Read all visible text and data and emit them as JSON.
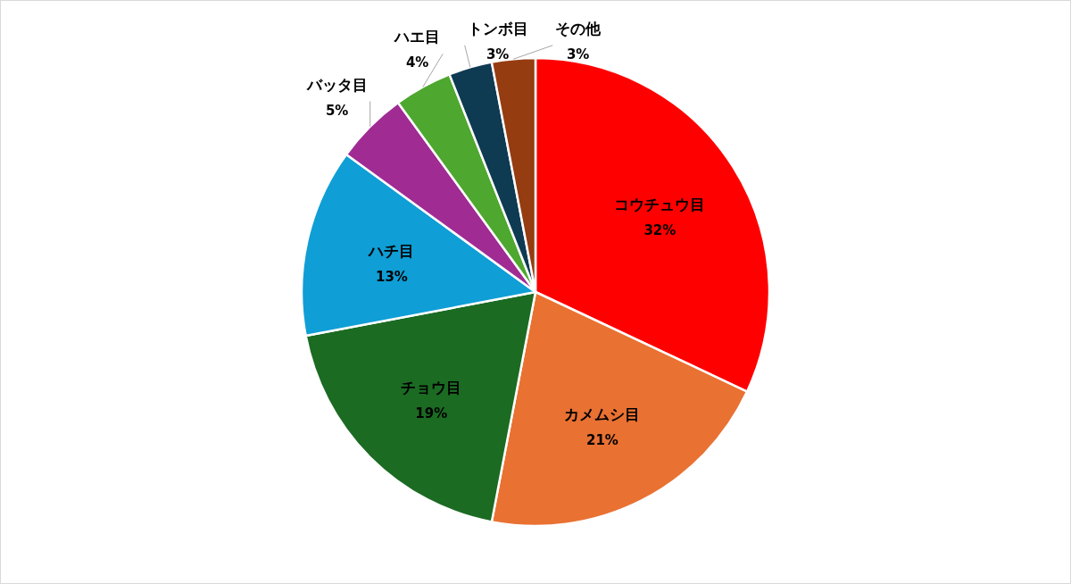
{
  "chart_data": {
    "type": "pie",
    "categories": [
      "コウチュウ目",
      "カメムシ目",
      "チョウ目",
      "ハチ目",
      "バッタ目",
      "ハエ目",
      "トンボ目",
      "その他"
    ],
    "values": [
      32,
      21,
      19,
      13,
      5,
      4,
      3,
      3
    ],
    "colors": [
      "#ff0000",
      "#e97132",
      "#1b6b23",
      "#0f9ed5",
      "#a02b93",
      "#4ea72e",
      "#0e3a52",
      "#963c11"
    ],
    "value_labels": [
      "32%",
      "21%",
      "19%",
      "13%",
      "5%",
      "4%",
      "3%",
      "3%"
    ]
  }
}
